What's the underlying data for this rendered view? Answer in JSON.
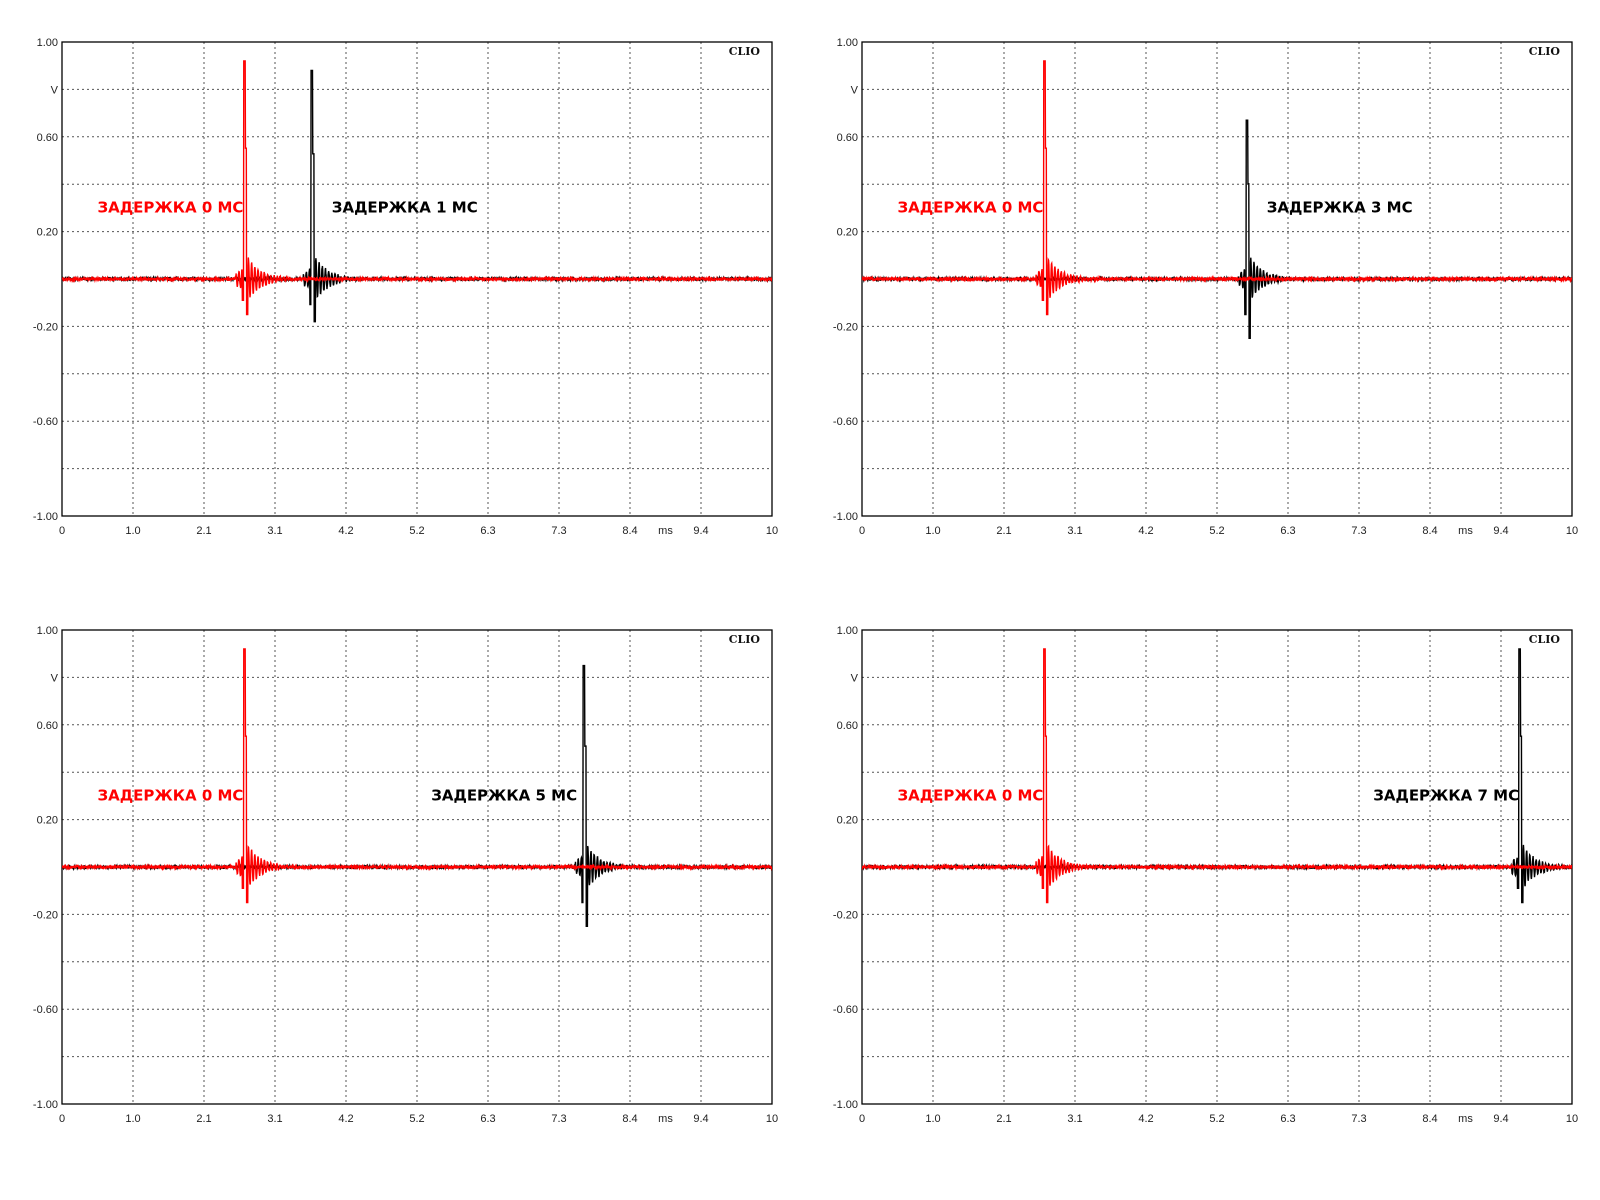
{
  "brand_label": "CLIO",
  "colors": {
    "reference": "#ff0000",
    "delayed": "#000000",
    "grid": "#555555",
    "frame": "#000000"
  },
  "chart_data": [
    {
      "type": "line",
      "title": "",
      "xlabel": "ms",
      "ylabel": "V",
      "xlim": [
        0,
        10
      ],
      "ylim": [
        -1.0,
        1.0
      ],
      "grid": true,
      "x_ticks": [
        "0",
        "1.0",
        "2.1",
        "3.1",
        "4.2",
        "5.2",
        "6.3",
        "7.3",
        "8.4",
        "9.4",
        "10"
      ],
      "y_ticks": [
        "1.00",
        "0.60",
        "0.20",
        "-0.20",
        "-0.60",
        "-1.00"
      ],
      "y_unit": "V",
      "x_unit": "ms",
      "annotations": [
        {
          "text": "ЗАДЕРЖКА 0 МС",
          "series": "reference"
        },
        {
          "text": "ЗАДЕРЖКА 1 МС",
          "series": "delayed"
        }
      ],
      "series": [
        {
          "key": "reference",
          "peak_time": 2.57,
          "peak": 0.92,
          "trough": -0.15
        },
        {
          "key": "delayed",
          "peak_time": 3.52,
          "peak": 0.88,
          "trough": -0.18
        }
      ]
    },
    {
      "type": "line",
      "title": "",
      "xlabel": "ms",
      "ylabel": "V",
      "xlim": [
        0,
        10
      ],
      "ylim": [
        -1.0,
        1.0
      ],
      "grid": true,
      "x_ticks": [
        "0",
        "1.0",
        "2.1",
        "3.1",
        "4.2",
        "5.2",
        "6.3",
        "7.3",
        "8.4",
        "9.4",
        "10"
      ],
      "y_ticks": [
        "1.00",
        "0.60",
        "0.20",
        "-0.20",
        "-0.60",
        "-1.00"
      ],
      "y_unit": "V",
      "x_unit": "ms",
      "annotations": [
        {
          "text": "ЗАДЕРЖКА 0 МС",
          "series": "reference"
        },
        {
          "text": "ЗАДЕРЖКА 3 МС",
          "series": "delayed"
        }
      ],
      "series": [
        {
          "key": "reference",
          "peak_time": 2.57,
          "peak": 0.92,
          "trough": -0.15
        },
        {
          "key": "delayed",
          "peak_time": 5.42,
          "peak": 0.67,
          "trough": -0.25
        }
      ]
    },
    {
      "type": "line",
      "title": "",
      "xlabel": "ms",
      "ylabel": "V",
      "xlim": [
        0,
        10
      ],
      "ylim": [
        -1.0,
        1.0
      ],
      "grid": true,
      "x_ticks": [
        "0",
        "1.0",
        "2.1",
        "3.1",
        "4.2",
        "5.2",
        "6.3",
        "7.3",
        "8.4",
        "9.4",
        "10"
      ],
      "y_ticks": [
        "1.00",
        "0.60",
        "0.20",
        "-0.20",
        "-0.60",
        "-1.00"
      ],
      "y_unit": "V",
      "x_unit": "ms",
      "annotations": [
        {
          "text": "ЗАДЕРЖКА 0 МС",
          "series": "reference"
        },
        {
          "text": "ЗАДЕРЖКА 5 МС",
          "series": "delayed"
        }
      ],
      "series": [
        {
          "key": "reference",
          "peak_time": 2.57,
          "peak": 0.92,
          "trough": -0.15
        },
        {
          "key": "delayed",
          "peak_time": 7.35,
          "peak": 0.85,
          "trough": -0.25
        }
      ]
    },
    {
      "type": "line",
      "title": "",
      "xlabel": "ms",
      "ylabel": "V",
      "xlim": [
        0,
        10
      ],
      "ylim": [
        -1.0,
        1.0
      ],
      "grid": true,
      "x_ticks": [
        "0",
        "1.0",
        "2.1",
        "3.1",
        "4.2",
        "5.2",
        "6.3",
        "7.3",
        "8.4",
        "9.4",
        "10"
      ],
      "y_ticks": [
        "1.00",
        "0.60",
        "0.20",
        "-0.20",
        "-0.60",
        "-1.00"
      ],
      "y_unit": "V",
      "x_unit": "ms",
      "annotations": [
        {
          "text": "ЗАДЕРЖКА 0 МС",
          "series": "reference"
        },
        {
          "text": "ЗАДЕРЖКА 7 МС",
          "series": "delayed"
        }
      ],
      "series": [
        {
          "key": "reference",
          "peak_time": 2.57,
          "peak": 0.92,
          "trough": -0.15
        },
        {
          "key": "delayed",
          "peak_time": 9.26,
          "peak": 0.92,
          "trough": -0.15
        }
      ]
    }
  ]
}
